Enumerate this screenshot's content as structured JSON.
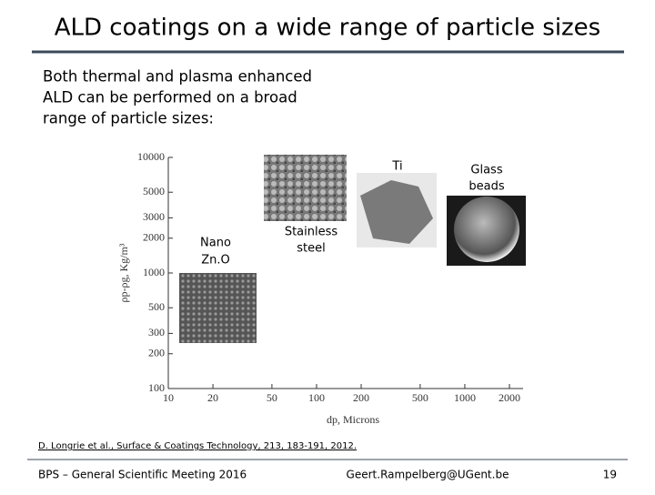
{
  "header": {
    "title": "ALD coatings on a wide range of particle sizes"
  },
  "body": [
    "Both thermal and plasma enhanced",
    "ALD can be performed on a broad",
    "range of particle sizes:"
  ],
  "figure": {
    "ylabel": "ρp-ρg, Kg/m³",
    "xlabel": "dp, Microns",
    "log_x": true,
    "log_y": true,
    "xlim": [
      10,
      2000
    ],
    "ylim": [
      100,
      10000
    ],
    "xticks": [
      10,
      20,
      50,
      100,
      200,
      500,
      1000,
      2000
    ],
    "yticks": [
      100,
      200,
      300,
      500,
      1000,
      2000,
      3000,
      5000,
      10000
    ],
    "images": [
      {
        "label": [
          "Nano",
          "Zn.O"
        ]
      },
      {
        "label": [
          "Stainless",
          "steel"
        ]
      },
      {
        "label": [
          "Ti"
        ]
      },
      {
        "label": [
          "Glass",
          "beads"
        ]
      }
    ]
  },
  "reference": "D. Longrie et al., Surface & Coatings Technology, 213, 183-191, 2012.",
  "footer": {
    "left": "BPS – General Scientific Meeting 2016",
    "center": "Geert.Rampelberg@UGent.be",
    "page": "19"
  }
}
